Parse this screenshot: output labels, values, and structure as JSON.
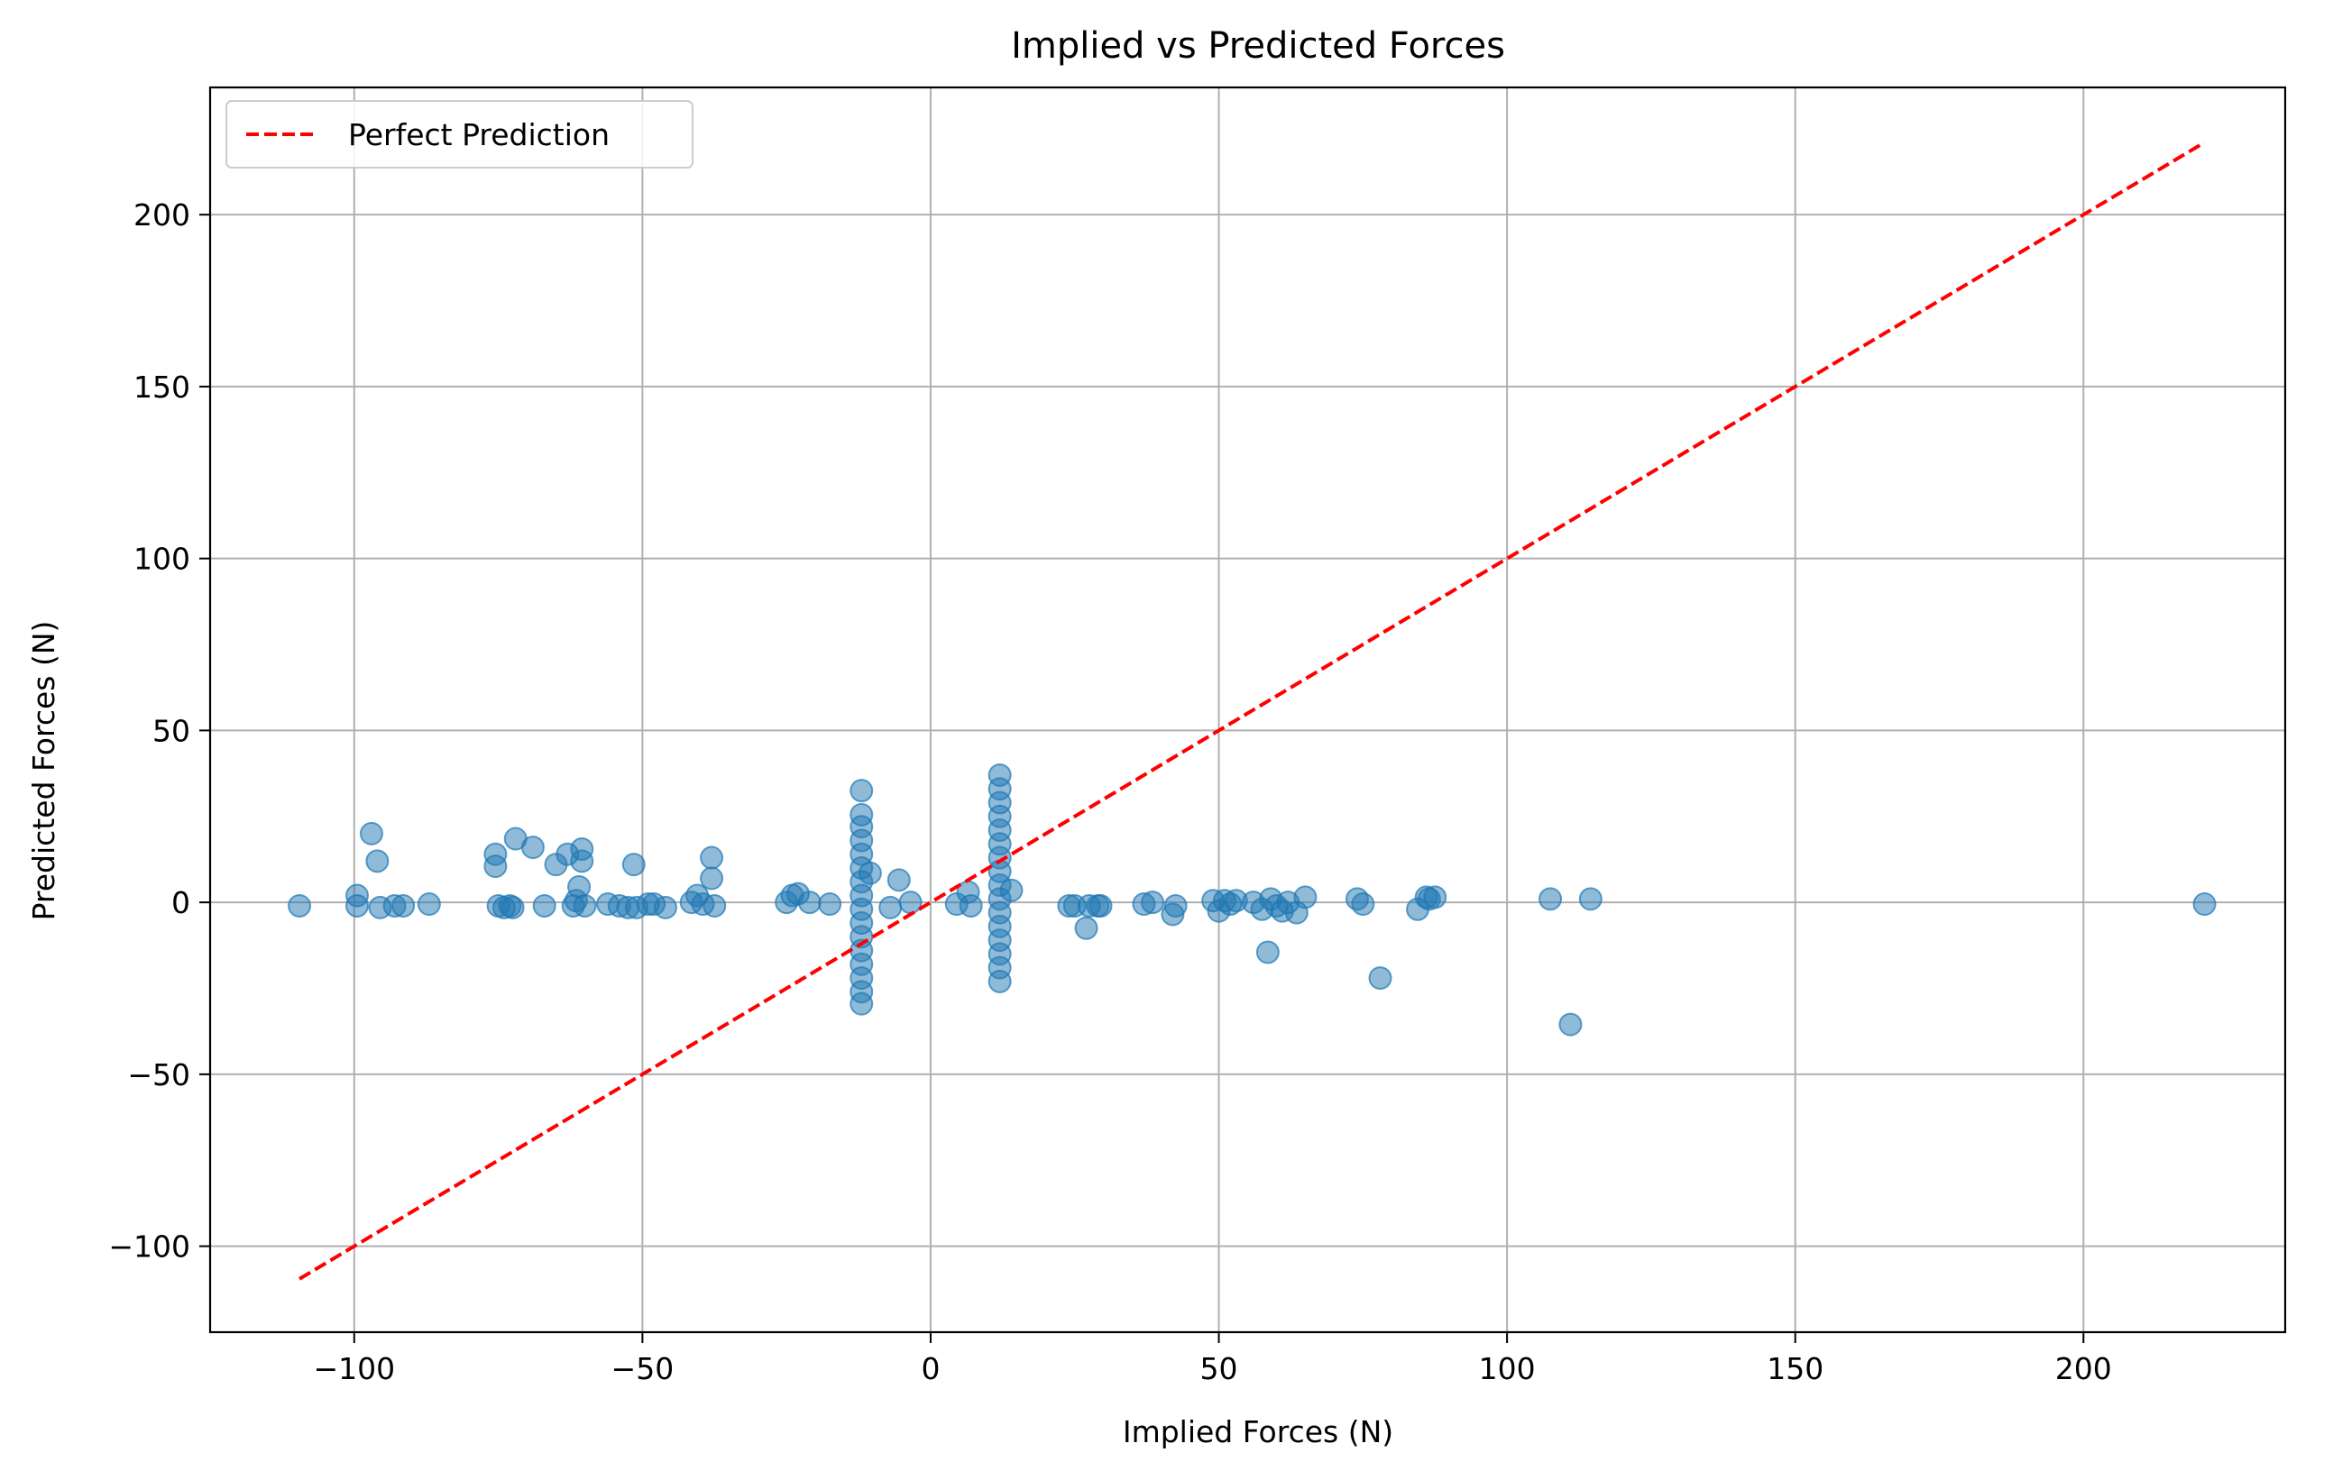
{
  "chart_data": {
    "type": "scatter",
    "title": "Implied vs Predicted Forces",
    "xlabel": "Implied Forces (N)",
    "ylabel": "Predicted Forces (N)",
    "xlim": [
      -125,
      235
    ],
    "ylim": [
      -125,
      237
    ],
    "xticks": [
      -100,
      -50,
      0,
      50,
      100,
      150,
      200
    ],
    "yticks": [
      -100,
      -50,
      0,
      50,
      100,
      150,
      200
    ],
    "tick_labels": {
      "x": [
        "−100",
        "−50",
        "0",
        "50",
        "100",
        "150",
        "200"
      ],
      "y": [
        "−100",
        "−50",
        "0",
        "50",
        "100",
        "150",
        "200"
      ]
    },
    "grid": true,
    "legend": {
      "position": "top-left",
      "entries": [
        "Perfect Prediction"
      ]
    },
    "colors": {
      "points": "#1f77b4",
      "reference_line": "#ff0000",
      "grid": "#b0b0b0"
    },
    "reference_line": {
      "name": "Perfect Prediction",
      "x": [
        -109.5,
        221
      ],
      "y": [
        -109.5,
        221
      ],
      "style": "dashed"
    },
    "series": [
      {
        "points": [
          [
            -109.5,
            -1
          ],
          [
            -99.5,
            2
          ],
          [
            -99.5,
            -1
          ],
          [
            -97,
            20
          ],
          [
            -96,
            12
          ],
          [
            -95.5,
            -1.5
          ],
          [
            -93,
            -1
          ],
          [
            -91.5,
            -1
          ],
          [
            -87,
            -0.5
          ],
          [
            -75.5,
            14
          ],
          [
            -75.5,
            10.5
          ],
          [
            -75,
            -1
          ],
          [
            -74,
            -1.5
          ],
          [
            -73,
            -1
          ],
          [
            -72.5,
            -1.5
          ],
          [
            -72,
            18.5
          ],
          [
            -69,
            16
          ],
          [
            -67,
            -1
          ],
          [
            -65,
            11
          ],
          [
            -63,
            14
          ],
          [
            -62,
            -1
          ],
          [
            -61.5,
            0.5
          ],
          [
            -61,
            4.5
          ],
          [
            -60.5,
            15.5
          ],
          [
            -60.5,
            12
          ],
          [
            -60,
            -1
          ],
          [
            -56,
            -0.5
          ],
          [
            -54,
            -1
          ],
          [
            -52.5,
            -1.5
          ],
          [
            -51.5,
            11
          ],
          [
            -51,
            -1.5
          ],
          [
            -49,
            -0.5
          ],
          [
            -48,
            -0.5
          ],
          [
            -46,
            -1.5
          ],
          [
            -41.5,
            0
          ],
          [
            -40.5,
            2
          ],
          [
            -39.5,
            -0.5
          ],
          [
            -38,
            7
          ],
          [
            -38,
            13
          ],
          [
            -37.5,
            -1
          ],
          [
            -25,
            0
          ],
          [
            -24,
            2
          ],
          [
            -23,
            2.5
          ],
          [
            -21,
            0
          ],
          [
            -17.5,
            -0.5
          ],
          [
            -12,
            32.5
          ],
          [
            -12,
            25.5
          ],
          [
            -12,
            22
          ],
          [
            -12,
            18
          ],
          [
            -12,
            14
          ],
          [
            -12,
            10
          ],
          [
            -12,
            6
          ],
          [
            -12,
            2
          ],
          [
            -12,
            -2
          ],
          [
            -12,
            -6
          ],
          [
            -12,
            -10
          ],
          [
            -12,
            -14
          ],
          [
            -12,
            -18
          ],
          [
            -12,
            -22
          ],
          [
            -12,
            -26
          ],
          [
            -12,
            -29.5
          ],
          [
            -10.5,
            8.5
          ],
          [
            -7,
            -1.5
          ],
          [
            -5.5,
            6.5
          ],
          [
            -3.5,
            0
          ],
          [
            4.5,
            -0.5
          ],
          [
            6.5,
            3
          ],
          [
            7,
            -1
          ],
          [
            12,
            37
          ],
          [
            12,
            33
          ],
          [
            12,
            29
          ],
          [
            12,
            25
          ],
          [
            12,
            21
          ],
          [
            12,
            17
          ],
          [
            12,
            13
          ],
          [
            12,
            9
          ],
          [
            12,
            5
          ],
          [
            12,
            1
          ],
          [
            12,
            -3
          ],
          [
            12,
            -7
          ],
          [
            12,
            -11
          ],
          [
            12,
            -15
          ],
          [
            12,
            -19
          ],
          [
            12,
            -23
          ],
          [
            14,
            3.5
          ],
          [
            24,
            -1
          ],
          [
            25,
            -1
          ],
          [
            27,
            -7.5
          ],
          [
            27.5,
            -1
          ],
          [
            29,
            -1
          ],
          [
            29.5,
            -1
          ],
          [
            37,
            -0.5
          ],
          [
            38.5,
            0
          ],
          [
            42,
            -3.5
          ],
          [
            42.5,
            -1
          ],
          [
            49,
            0.5
          ],
          [
            50,
            -2.5
          ],
          [
            51,
            0.5
          ],
          [
            52,
            -0.5
          ],
          [
            53,
            0.5
          ],
          [
            56,
            0
          ],
          [
            57.5,
            -2
          ],
          [
            58.5,
            -14.5
          ],
          [
            59,
            1
          ],
          [
            60,
            -1
          ],
          [
            61,
            -2.5
          ],
          [
            62,
            0
          ],
          [
            63.5,
            -3
          ],
          [
            65,
            1.5
          ],
          [
            74,
            1
          ],
          [
            75,
            -0.5
          ],
          [
            78,
            -22
          ],
          [
            84.5,
            -2
          ],
          [
            86,
            1.5
          ],
          [
            86.5,
            1
          ],
          [
            87.5,
            1.5
          ],
          [
            107.5,
            1
          ],
          [
            111,
            -35.5
          ],
          [
            114.5,
            1
          ],
          [
            221,
            -0.5
          ]
        ]
      }
    ]
  }
}
